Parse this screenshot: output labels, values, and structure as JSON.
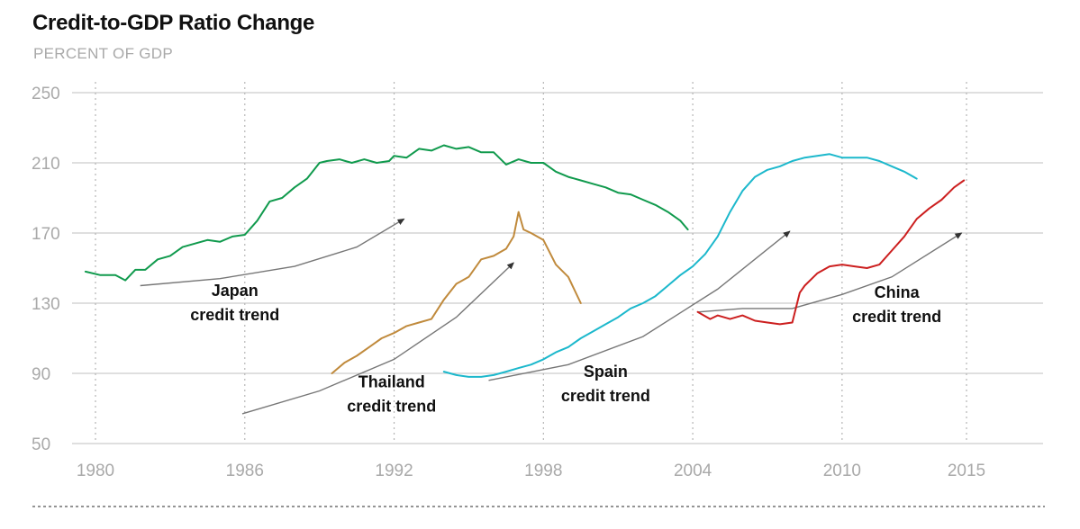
{
  "header": {
    "title": "Credit-to-GDP Ratio Change",
    "subtitle": "PERCENT OF GDP"
  },
  "colors": {
    "japan": "#109a4d",
    "thailand": "#c08a3c",
    "spain": "#1cb8cc",
    "china": "#cc1f1f",
    "trend": "#777777",
    "grid": "#cccccc",
    "tick": "#a9a9a9"
  },
  "chart_data": {
    "type": "line",
    "title": "Credit-to-GDP Ratio Change",
    "ylabel": "PERCENT OF GDP",
    "xlabel": "",
    "xlim": [
      1980,
      2018
    ],
    "ylim": [
      50,
      250
    ],
    "yticks": [
      50,
      90,
      130,
      170,
      210,
      250
    ],
    "xticks": [
      1980,
      1986,
      1992,
      1998,
      2004,
      2010,
      2015
    ],
    "grid": true,
    "series": [
      {
        "name": "Japan",
        "color_key": "japan",
        "x": [
          1979.6,
          1980.2,
          1980.8,
          1981.2,
          1981.6,
          1982.0,
          1982.5,
          1983.0,
          1983.5,
          1984.0,
          1984.5,
          1985.0,
          1985.5,
          1986.0,
          1986.5,
          1987.0,
          1987.5,
          1988.0,
          1988.5,
          1989.0,
          1989.3,
          1989.8,
          1990.3,
          1990.8,
          1991.3,
          1991.8,
          1992.0,
          1992.5,
          1993.0,
          1993.5,
          1994.0,
          1994.5,
          1995.0,
          1995.5,
          1996.0,
          1996.5,
          1997.0,
          1997.5,
          1998.0,
          1998.5,
          1999.0,
          1999.5,
          2000.0,
          2000.5,
          2001.0,
          2001.5,
          2002.0,
          2002.5,
          2003.0,
          2003.5,
          2003.8
        ],
        "values": [
          148,
          146,
          146,
          143,
          149,
          149,
          155,
          157,
          162,
          164,
          166,
          165,
          168,
          169,
          177,
          188,
          190,
          196,
          201,
          210,
          211,
          212,
          210,
          212,
          210,
          211,
          214,
          213,
          218,
          217,
          220,
          218,
          219,
          216,
          216,
          209,
          212,
          210,
          210,
          205,
          202,
          200,
          198,
          196,
          193,
          192,
          189,
          186,
          182,
          177,
          172
        ]
      },
      {
        "name": "Thailand",
        "color_key": "thailand",
        "x": [
          1989.5,
          1990.0,
          1990.5,
          1991.0,
          1991.5,
          1992.0,
          1992.5,
          1993.0,
          1993.5,
          1994.0,
          1994.5,
          1995.0,
          1995.5,
          1996.0,
          1996.5,
          1996.8,
          1997.0,
          1997.2,
          1997.5,
          1998.0,
          1998.5,
          1999.0,
          1999.5
        ],
        "values": [
          90,
          96,
          100,
          105,
          110,
          113,
          117,
          119,
          121,
          132,
          141,
          145,
          155,
          157,
          161,
          168,
          182,
          172,
          170,
          166,
          152,
          145,
          130
        ]
      },
      {
        "name": "Spain",
        "color_key": "spain",
        "x": [
          1994.0,
          1994.5,
          1995.0,
          1995.5,
          1996.0,
          1996.5,
          1997.0,
          1997.5,
          1998.0,
          1998.5,
          1999.0,
          1999.5,
          2000.0,
          2000.5,
          2001.0,
          2001.5,
          2002.0,
          2002.5,
          2003.0,
          2003.5,
          2004.0,
          2004.5,
          2005.0,
          2005.5,
          2006.0,
          2006.5,
          2007.0,
          2007.5,
          2008.0,
          2008.5,
          2009.0,
          2009.5,
          2010.0,
          2010.5,
          2011.0,
          2011.5,
          2012.0,
          2012.5,
          2013.0
        ],
        "values": [
          91,
          89,
          88,
          88,
          89,
          91,
          93,
          95,
          98,
          102,
          105,
          110,
          114,
          118,
          122,
          127,
          130,
          134,
          140,
          146,
          151,
          158,
          168,
          182,
          194,
          202,
          206,
          208,
          211,
          213,
          214,
          215,
          213,
          213,
          213,
          211,
          208,
          205,
          201
        ]
      },
      {
        "name": "China",
        "color_key": "china",
        "x": [
          2004.2,
          2004.7,
          2005.0,
          2005.5,
          2006.0,
          2006.5,
          2007.0,
          2007.5,
          2008.0,
          2008.3,
          2008.5,
          2009.0,
          2009.5,
          2010.0,
          2010.5,
          2011.0,
          2011.5,
          2012.0,
          2012.5,
          2013.0,
          2013.5,
          2014.0,
          2014.5,
          2014.9
        ],
        "values": [
          125,
          121,
          123,
          121,
          123,
          120,
          119,
          118,
          119,
          136,
          140,
          147,
          151,
          152,
          151,
          150,
          152,
          160,
          168,
          178,
          184,
          189,
          196,
          200
        ]
      }
    ],
    "trends": [
      {
        "name": "Japan credit trend",
        "x": [
          1981.8,
          1985.0,
          1988.0,
          1990.5,
          1992.4
        ],
        "values": [
          140,
          144,
          151,
          162,
          178
        ]
      },
      {
        "name": "Thailand credit trend",
        "x": [
          1985.9,
          1989.0,
          1992.0,
          1994.5,
          1996.8
        ],
        "values": [
          67,
          80,
          98,
          122,
          153
        ]
      },
      {
        "name": "Spain credit trend",
        "x": [
          1995.8,
          1999.0,
          2002.0,
          2005.0,
          2007.9
        ],
        "values": [
          86,
          95,
          111,
          138,
          171
        ]
      },
      {
        "name": "China credit trend",
        "x": [
          2004.2,
          2006.0,
          2008.0,
          2010.0,
          2012.0,
          2014.8
        ],
        "values": [
          125,
          127,
          127,
          135,
          145,
          170
        ]
      }
    ],
    "annotations": [
      {
        "series": "Japan",
        "lines": [
          "Japan",
          "credit trend"
        ],
        "x": 1985.6,
        "y": 134,
        "align": "middle"
      },
      {
        "series": "Thailand",
        "lines": [
          "Thailand",
          "credit trend"
        ],
        "x": 1991.9,
        "y": 82,
        "align": "middle"
      },
      {
        "series": "Spain",
        "lines": [
          "Spain",
          "credit trend"
        ],
        "x": 2000.5,
        "y": 88,
        "align": "middle"
      },
      {
        "series": "China",
        "lines": [
          "China",
          "credit trend"
        ],
        "x": 2012.2,
        "y": 133,
        "align": "middle"
      }
    ]
  }
}
